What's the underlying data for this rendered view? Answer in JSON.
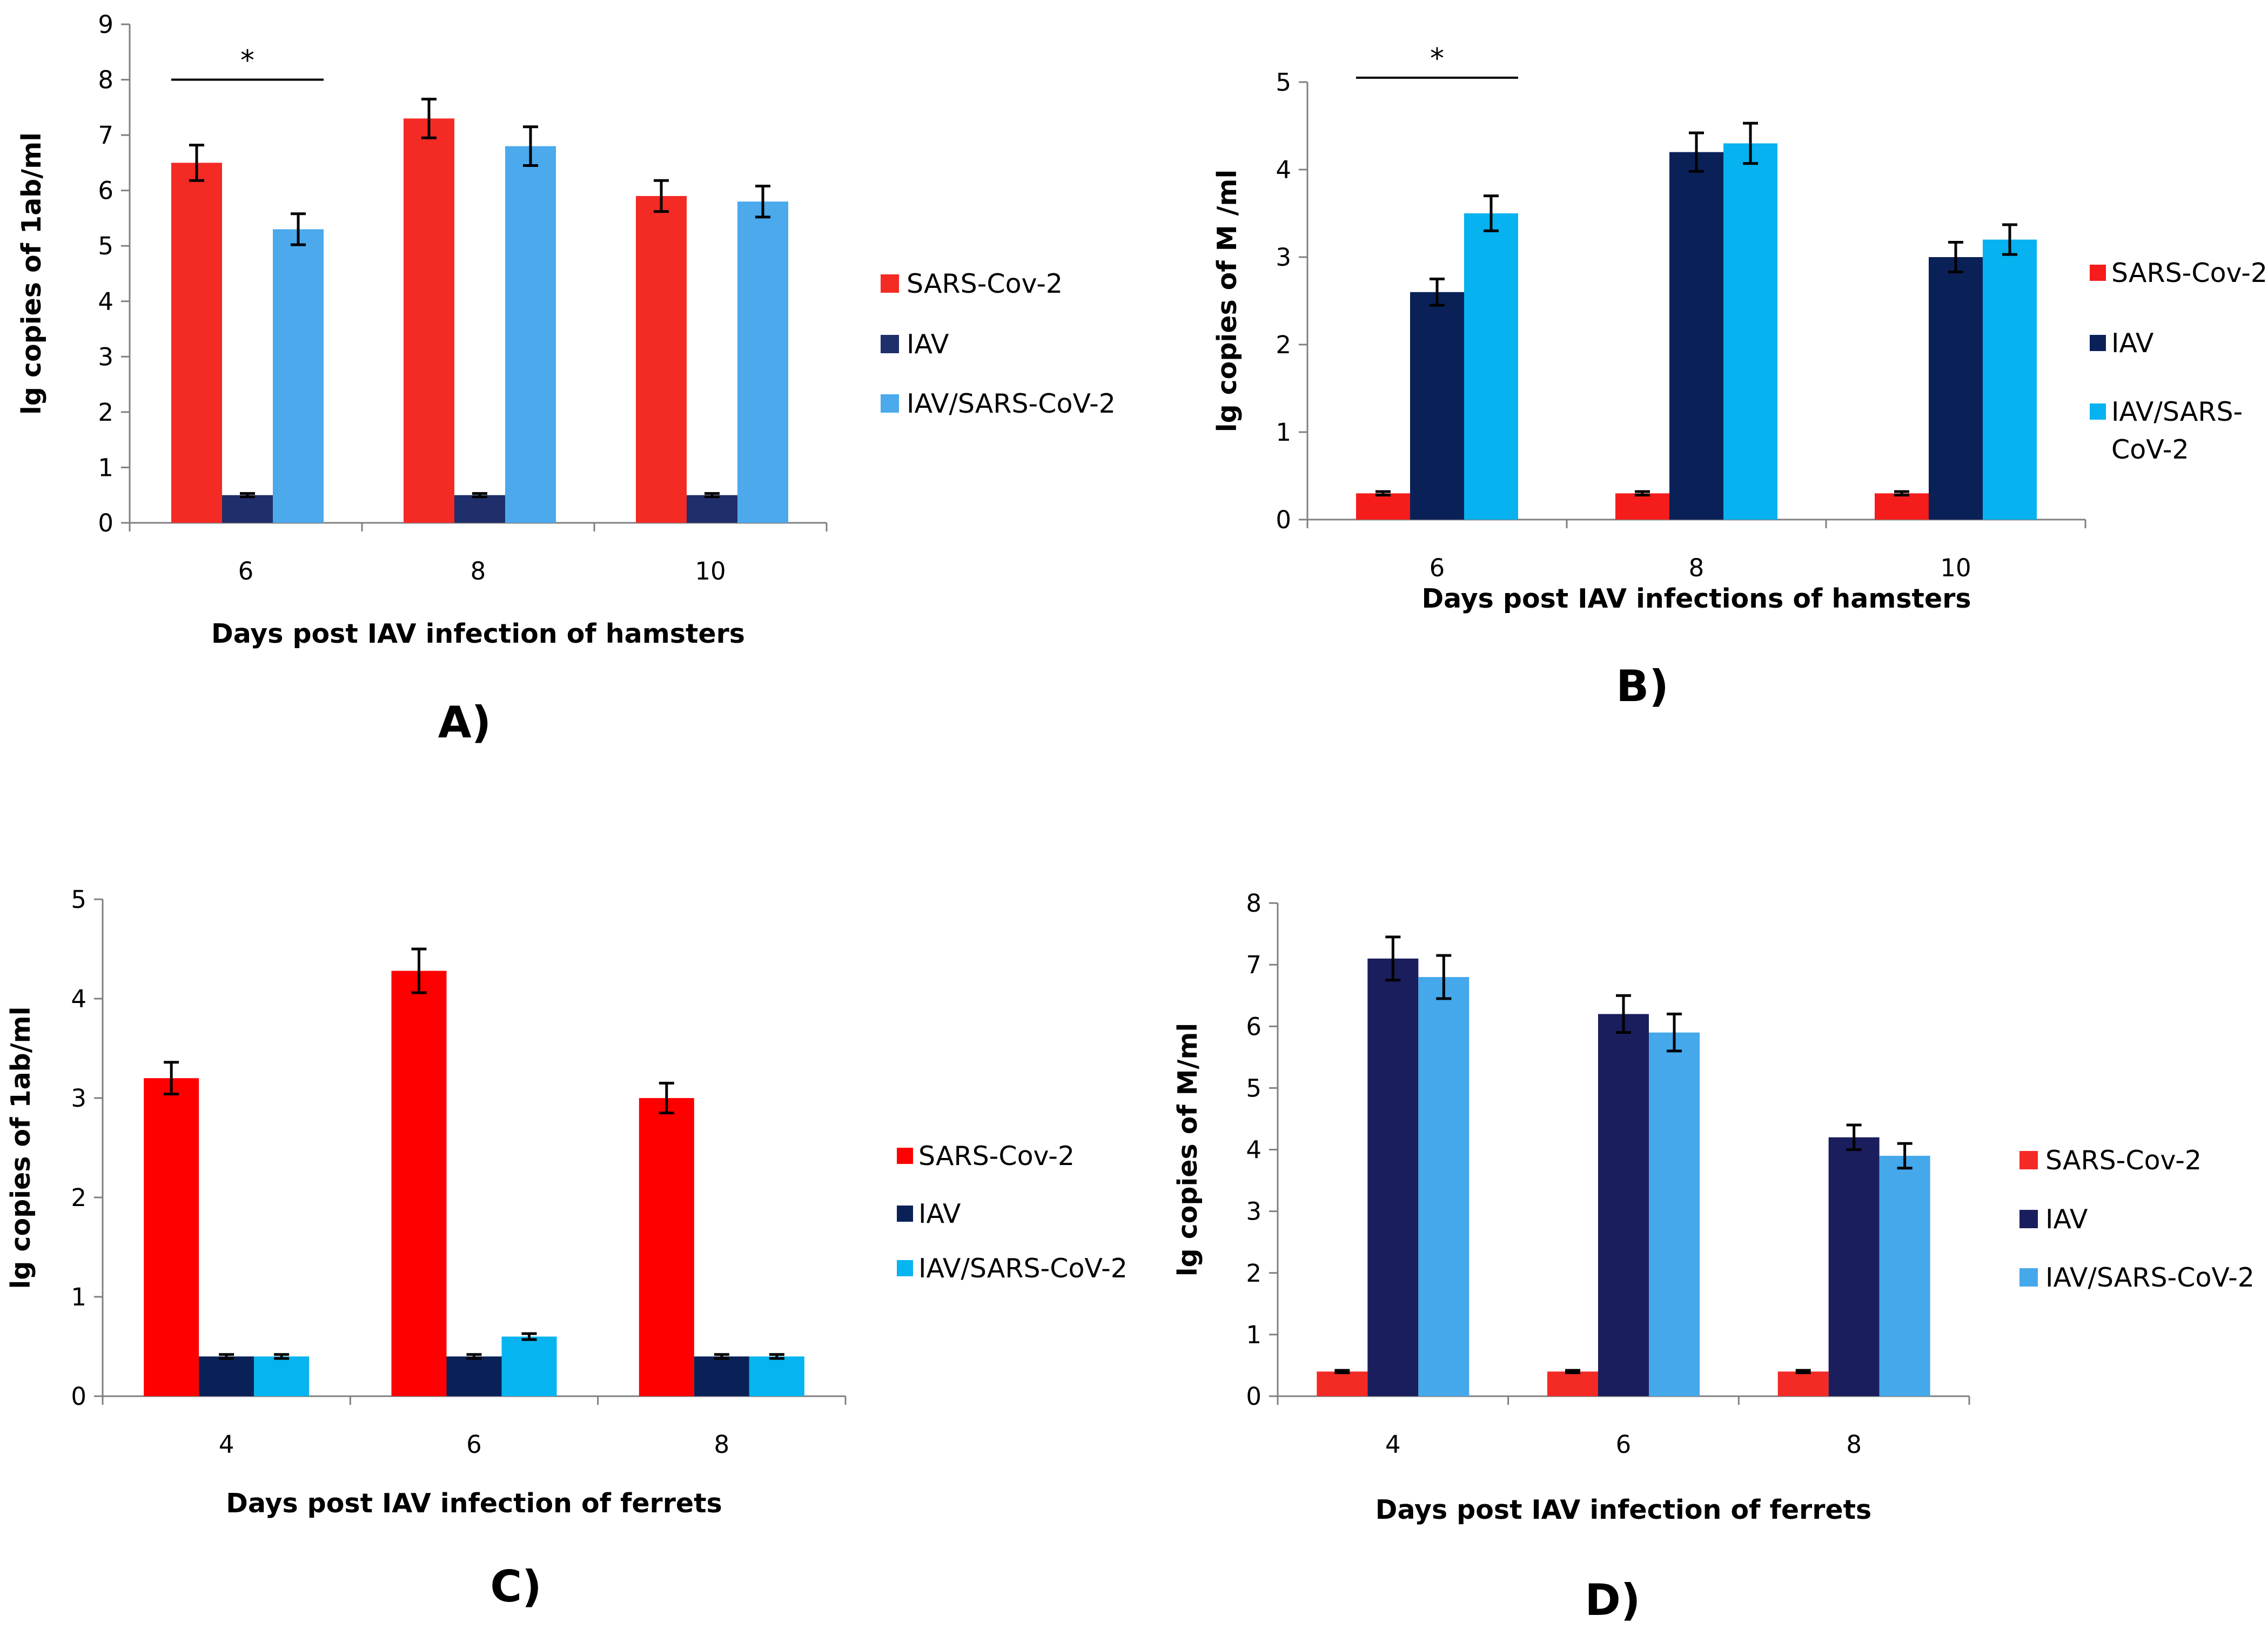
{
  "chart_data": [
    {
      "type": "bar",
      "panel_label": "A)",
      "categories": [
        "6",
        "8",
        "10"
      ],
      "xlabel": "Days post IAV infection of hamsters",
      "ylabel": "lg copies of 1ab/ml",
      "ylim": [
        0,
        9
      ],
      "yticks": [
        "0",
        "1",
        "2",
        "3",
        "4",
        "5",
        "6",
        "7",
        "8",
        "9"
      ],
      "series": [
        {
          "name": "SARS-Cov-2",
          "color": "#f42a25",
          "values": [
            6.5,
            7.3,
            5.9
          ],
          "errors": [
            0.32,
            0.35,
            0.28
          ]
        },
        {
          "name": "IAV",
          "color": "#1f2f6b",
          "values": [
            0.5,
            0.5,
            0.5
          ],
          "errors": [
            0.03,
            0.03,
            0.03
          ]
        },
        {
          "name": "IAV/SARS-CoV-2",
          "color": "#4ba9ec",
          "values": [
            5.3,
            6.8,
            5.8
          ],
          "errors": [
            0.28,
            0.35,
            0.28
          ]
        }
      ],
      "significance": {
        "label": "*",
        "category": "6",
        "level": 8.0
      }
    },
    {
      "type": "bar",
      "panel_label": "B)",
      "categories": [
        "6",
        "8",
        "10"
      ],
      "xlabel": "Days post IAV infections of hamsters",
      "ylabel": "lg copies of M /ml",
      "ylim": [
        0,
        5
      ],
      "yticks": [
        "0",
        "1",
        "2",
        "3",
        "4",
        "5"
      ],
      "series": [
        {
          "name": "SARS-Cov-2",
          "color": "#f51c1c",
          "values": [
            0.3,
            0.3,
            0.3
          ],
          "errors": [
            0.02,
            0.02,
            0.02
          ]
        },
        {
          "name": "IAV",
          "color": "#0a2158",
          "values": [
            2.6,
            4.2,
            3.0
          ],
          "errors": [
            0.15,
            0.22,
            0.17
          ]
        },
        {
          "name": "IAV/SARS-\nCoV-2",
          "color": "#06b2ef",
          "values": [
            3.5,
            4.3,
            3.2
          ],
          "errors": [
            0.2,
            0.23,
            0.17
          ]
        }
      ],
      "significance": {
        "label": "*",
        "category": "6",
        "level": 5.05
      }
    },
    {
      "type": "bar",
      "panel_label": "C)",
      "categories": [
        "4",
        "6",
        "8"
      ],
      "xlabel": "Days post IAV infection of ferrets",
      "ylabel": "lg copies of 1ab/ml",
      "ylim": [
        0,
        5
      ],
      "yticks": [
        "0",
        "1",
        "2",
        "3",
        "4",
        "5"
      ],
      "series": [
        {
          "name": "SARS-Cov-2",
          "color": "#ff0000",
          "values": [
            3.2,
            4.28,
            3.0
          ],
          "errors": [
            0.16,
            0.22,
            0.15
          ]
        },
        {
          "name": "IAV",
          "color": "#0a2158",
          "values": [
            0.4,
            0.4,
            0.4
          ],
          "errors": [
            0.02,
            0.02,
            0.02
          ]
        },
        {
          "name": "IAV/SARS-CoV-2",
          "color": "#06b5ef",
          "values": [
            0.4,
            0.6,
            0.4
          ],
          "errors": [
            0.02,
            0.03,
            0.02
          ]
        }
      ]
    },
    {
      "type": "bar",
      "panel_label": "D)",
      "categories": [
        "4",
        "6",
        "8"
      ],
      "xlabel": "Days post IAV infection of ferrets",
      "ylabel": "lg copies of M/ml",
      "ylim": [
        0,
        8
      ],
      "yticks": [
        "0",
        "1",
        "2",
        "3",
        "4",
        "5",
        "6",
        "7",
        "8"
      ],
      "series": [
        {
          "name": "SARS-Cov-2",
          "color": "#f42a25",
          "values": [
            0.4,
            0.4,
            0.4
          ],
          "errors": [
            0.02,
            0.02,
            0.02
          ]
        },
        {
          "name": "IAV",
          "color": "#1b1e5c",
          "values": [
            7.1,
            6.2,
            4.2
          ],
          "errors": [
            0.35,
            0.3,
            0.2
          ]
        },
        {
          "name": "IAV/SARS-CoV-2",
          "color": "#45a8ea",
          "values": [
            6.8,
            5.9,
            3.9
          ],
          "errors": [
            0.35,
            0.3,
            0.2
          ]
        }
      ]
    }
  ]
}
